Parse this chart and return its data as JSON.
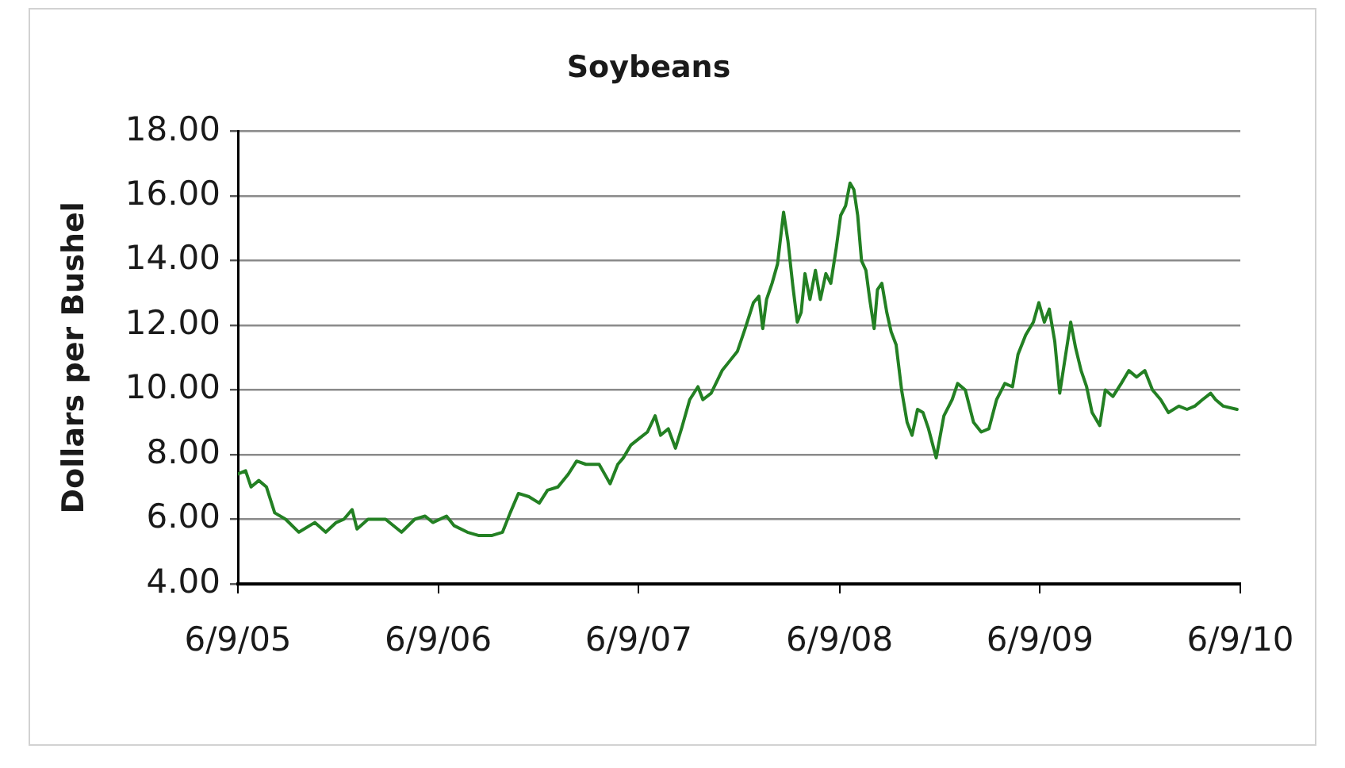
{
  "chart_data": {
    "type": "line",
    "title": "Soybeans",
    "ylabel": "Dollars per Bushel",
    "x": [
      "2005-06-09",
      "2005-06-23",
      "2005-07-03",
      "2005-07-17",
      "2005-07-31",
      "2005-08-15",
      "2005-09-04",
      "2005-09-28",
      "2005-10-27",
      "2005-11-16",
      "2005-12-05",
      "2005-12-19",
      "2006-01-03",
      "2006-01-12",
      "2006-02-01",
      "2006-03-05",
      "2006-04-03",
      "2006-04-27",
      "2006-05-16",
      "2006-05-30",
      "2006-06-24",
      "2006-07-08",
      "2006-08-01",
      "2006-08-21",
      "2006-09-15",
      "2006-10-04",
      "2006-10-18",
      "2006-11-02",
      "2006-11-21",
      "2006-12-10",
      "2006-12-25",
      "2007-01-13",
      "2007-02-01",
      "2007-02-16",
      "2007-03-05",
      "2007-03-29",
      "2007-04-18",
      "2007-05-02",
      "2007-05-12",
      "2007-05-26",
      "2007-06-10",
      "2007-06-25",
      "2007-07-09",
      "2007-07-19",
      "2007-08-02",
      "2007-08-15",
      "2007-08-26",
      "2007-09-10",
      "2007-09-25",
      "2007-10-04",
      "2007-10-19",
      "2007-11-08",
      "2007-11-22",
      "2007-12-06",
      "2007-12-20",
      "2008-01-04",
      "2008-01-14",
      "2008-01-21",
      "2008-01-28",
      "2008-02-07",
      "2008-02-17",
      "2008-02-28",
      "2008-03-07",
      "2008-03-16",
      "2008-03-24",
      "2008-03-31",
      "2008-04-07",
      "2008-04-16",
      "2008-04-26",
      "2008-05-05",
      "2008-05-15",
      "2008-05-24",
      "2008-06-03",
      "2008-06-11",
      "2008-06-20",
      "2008-06-28",
      "2008-07-05",
      "2008-07-12",
      "2008-07-19",
      "2008-07-27",
      "2008-08-03",
      "2008-08-11",
      "2008-08-17",
      "2008-08-25",
      "2008-09-03",
      "2008-09-11",
      "2008-09-20",
      "2008-09-30",
      "2008-10-10",
      "2008-10-19",
      "2008-10-29",
      "2008-11-08",
      "2008-11-18",
      "2008-12-02",
      "2008-12-16",
      "2008-12-31",
      "2009-01-10",
      "2009-01-24",
      "2009-02-08",
      "2009-02-22",
      "2009-03-08",
      "2009-03-22",
      "2009-04-06",
      "2009-04-20",
      "2009-04-30",
      "2009-05-14",
      "2009-05-28",
      "2009-06-07",
      "2009-06-17",
      "2009-06-26",
      "2009-07-06",
      "2009-07-15",
      "2009-07-25",
      "2009-08-04",
      "2009-08-13",
      "2009-08-23",
      "2009-09-02",
      "2009-09-12",
      "2009-09-26",
      "2009-10-06",
      "2009-10-20",
      "2009-11-04",
      "2009-11-18",
      "2009-12-02",
      "2009-12-17",
      "2009-12-31",
      "2010-01-15",
      "2010-01-29",
      "2010-02-17",
      "2010-03-04",
      "2010-03-18",
      "2010-04-01",
      "2010-04-16",
      "2010-04-25",
      "2010-05-09",
      "2010-06-03"
    ],
    "series": [
      {
        "color": "#238023",
        "values": [
          7.4,
          7.5,
          7.0,
          7.2,
          7.0,
          6.2,
          6.0,
          5.6,
          5.9,
          5.6,
          5.9,
          6.0,
          6.3,
          5.7,
          6.0,
          6.0,
          5.6,
          6.0,
          6.1,
          5.9,
          6.1,
          5.8,
          5.6,
          5.5,
          5.5,
          5.6,
          6.2,
          6.8,
          6.7,
          6.5,
          6.9,
          7.0,
          7.4,
          7.8,
          7.7,
          7.7,
          7.1,
          7.7,
          7.9,
          8.3,
          8.5,
          8.7,
          9.2,
          8.6,
          8.8,
          8.2,
          8.8,
          9.7,
          10.1,
          9.7,
          9.9,
          10.6,
          10.9,
          11.2,
          11.9,
          12.7,
          12.9,
          11.9,
          12.8,
          13.3,
          13.9,
          15.5,
          14.6,
          13.2,
          12.1,
          12.4,
          13.6,
          12.8,
          13.7,
          12.8,
          13.6,
          13.3,
          14.4,
          15.4,
          15.7,
          16.4,
          16.2,
          15.4,
          14.0,
          13.7,
          12.8,
          11.9,
          13.1,
          13.3,
          12.4,
          11.8,
          11.4,
          10.0,
          9.0,
          8.6,
          9.4,
          9.3,
          8.8,
          7.9,
          9.2,
          9.7,
          10.2,
          10.0,
          9.0,
          8.7,
          8.8,
          9.7,
          10.2,
          10.1,
          11.1,
          11.7,
          12.1,
          12.7,
          12.1,
          12.5,
          11.5,
          9.9,
          11.0,
          12.1,
          11.3,
          10.6,
          10.1,
          9.3,
          8.9,
          10.0,
          9.8,
          10.2,
          10.6,
          10.4,
          10.6,
          10.0,
          9.7,
          9.3,
          9.5,
          9.4,
          9.5,
          9.7,
          9.9,
          9.7,
          9.5,
          9.4
        ]
      }
    ],
    "xlim": [
      "2005-06-09",
      "2010-06-09"
    ],
    "xticks": [
      {
        "value": "2005-06-09",
        "label": "6/9/05"
      },
      {
        "value": "2006-06-09",
        "label": "6/9/06"
      },
      {
        "value": "2007-06-09",
        "label": "6/9/07"
      },
      {
        "value": "2008-06-09",
        "label": "6/9/08"
      },
      {
        "value": "2009-06-09",
        "label": "6/9/09"
      },
      {
        "value": "2010-06-09",
        "label": "6/9/10"
      }
    ],
    "ylim": [
      4,
      18
    ],
    "yticks": [
      {
        "value": 4,
        "label": "4.00"
      },
      {
        "value": 6,
        "label": "6.00"
      },
      {
        "value": 8,
        "label": "8.00"
      },
      {
        "value": 10,
        "label": "10.00"
      },
      {
        "value": 12,
        "label": "12.00"
      },
      {
        "value": 14,
        "label": "14.00"
      },
      {
        "value": 16,
        "label": "16.00"
      },
      {
        "value": 18,
        "label": "18.00"
      }
    ],
    "grid": "y"
  }
}
